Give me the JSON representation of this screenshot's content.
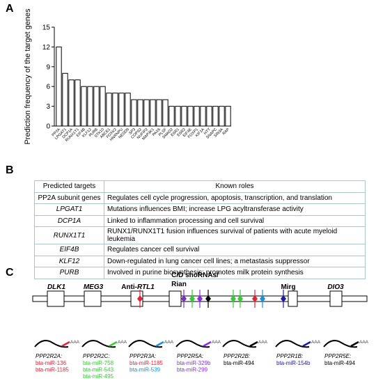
{
  "panels": {
    "a": "A",
    "b": "B",
    "c": "C"
  },
  "chart_data": {
    "type": "bar",
    "ylabel": "Prediction frequency of the target genes",
    "xlabel": "",
    "ylim": [
      0,
      15
    ],
    "yticks": [
      0,
      3,
      6,
      9,
      12,
      15
    ],
    "categories": [
      "PP2A",
      "LPGAT1",
      "DCP1A",
      "RUNX1T1",
      "EIF4B",
      "KLF12",
      "PURB",
      "STK10",
      "ABCE1",
      "FOXK2",
      "HNRNPU",
      "NEDD9",
      "SP3",
      "COPS2",
      "NUFIP2",
      "MAP3K1",
      "PAX6",
      "PLSF",
      "SMAD2",
      "ESR1",
      "ESR2",
      "EIF4E",
      "FOXP1",
      "KIF1A",
      "HTT",
      "SNAPC",
      "SIN3A",
      "RAP"
    ],
    "values": [
      12,
      8,
      7,
      7,
      6,
      6,
      6,
      6,
      5,
      5,
      5,
      5,
      4,
      4,
      4,
      4,
      4,
      4,
      3,
      3,
      3,
      3,
      3,
      3,
      3,
      3,
      3,
      3
    ],
    "grid": false,
    "legend": "none"
  },
  "table": {
    "headers": [
      "Predicted targets",
      "Known roles"
    ],
    "rows": [
      {
        "target": "PP2A subunit genes",
        "italic": false,
        "role": "Regulates cell cycle progression, apoptosis, transcription, and translation"
      },
      {
        "target": "LPGAT1",
        "italic": true,
        "role": "Mutations influences BMI; increase LPG acyltransferase activity"
      },
      {
        "target": "DCP1A",
        "italic": true,
        "role": "Linked to inflammation processing and cell survival"
      },
      {
        "target": "RUNX1T1",
        "italic": true,
        "role": "RUNX1/RUNX1T1 fusion influences survival of patients with acute myeloid leukemia"
      },
      {
        "target": "EIF4B",
        "italic": true,
        "role": "Regulates cancer cell survival"
      },
      {
        "target": "KLF12",
        "italic": true,
        "role": "Down-regulated in lung cancer cell lines; a metastasis suppressor"
      },
      {
        "target": "PURB",
        "italic": true,
        "role": "Involved in purine biosynthesis; promotes milk protein synthesis"
      }
    ]
  },
  "locus": {
    "genes": [
      {
        "label": "DLK1",
        "italic": true
      },
      {
        "label": "MEG3",
        "italic": true
      },
      {
        "label": "Anti-RTL1",
        "italic_part": "RTL1",
        "prefix": "Anti-"
      },
      {
        "label": "C/D snoRNAs/",
        "line2": "Rian",
        "italic": false
      },
      {
        "label": "Mirg",
        "italic": false
      },
      {
        "label": "DIO3",
        "italic": true
      }
    ],
    "mirna_colors": [
      "#e0223a",
      "#1e8ed8",
      "#8a2be2",
      "#7b2fc0",
      "#000000",
      "#33cc33",
      "#ff7f00",
      "#1a1aa6"
    ],
    "polyA": "AAA",
    "targets": [
      {
        "gene": "PPP2R2A:",
        "color": "#e0223a",
        "mirnas": [
          {
            "name": "bta-miR-136",
            "color": "#e0223a"
          },
          {
            "name": "bta-miR-1185",
            "color": "#e0223a"
          }
        ]
      },
      {
        "gene": "PPP2R2C:",
        "color": "#33cc33",
        "mirnas": [
          {
            "name": "bta-miR-758",
            "color": "#33cc33"
          },
          {
            "name": "bta-miR-543",
            "color": "#33cc33"
          },
          {
            "name": "bta-miR-495",
            "color": "#33cc33"
          }
        ]
      },
      {
        "gene": "PPP2R3A:",
        "color": "#1e8ed8",
        "mirnas": [
          {
            "name": "bta-miR-1185",
            "color": "#e0223a"
          },
          {
            "name": "bta-miR-539",
            "color": "#1e8ed8"
          }
        ]
      },
      {
        "gene": "PPP2R5A:",
        "color": "#8a2be2",
        "mirnas": [
          {
            "name": "bta-miR-329b",
            "color": "#8a2be2"
          },
          {
            "name": "bta-miR-299",
            "color": "#8a2be2"
          }
        ]
      },
      {
        "gene": "PPP2R2B:",
        "color": "#000000",
        "mirnas": [
          {
            "name": "bta-miR-494",
            "color": "#000000"
          }
        ]
      },
      {
        "gene": "PPP2R1B:",
        "color": "#1a1aa6",
        "mirnas": [
          {
            "name": "bta-miR-154b",
            "color": "#1a1aa6"
          }
        ]
      },
      {
        "gene": "PPP2R5E:",
        "color": "#000000",
        "mirnas": [
          {
            "name": "bta-miR-494",
            "color": "#000000"
          }
        ]
      }
    ]
  }
}
